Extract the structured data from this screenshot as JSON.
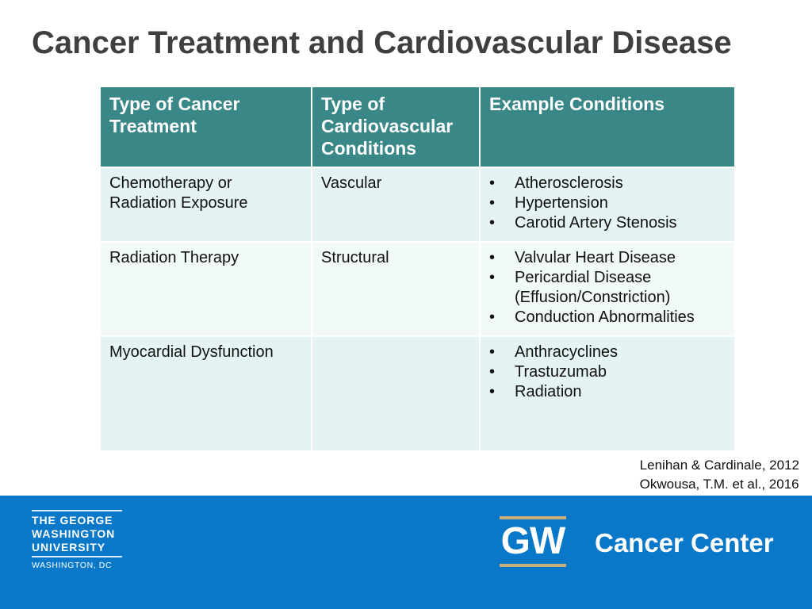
{
  "title": "Cancer Treatment and Cardiovascular Disease",
  "table": {
    "headers": [
      "Type of Cancer Treatment",
      "Type of Cardiovascular Conditions",
      "Example Conditions"
    ],
    "rows": [
      {
        "treatment": "Chemotherapy or Radiation Exposure",
        "condition_type": "Vascular",
        "examples": [
          "Atherosclerosis",
          "Hypertension",
          "Carotid Artery Stenosis"
        ]
      },
      {
        "treatment": "Radiation Therapy",
        "condition_type": "Structural",
        "examples": [
          "Valvular Heart Disease",
          "Pericardial Disease (Effusion/Constriction)",
          "Conduction Abnormalities"
        ]
      },
      {
        "treatment": "Myocardial Dysfunction",
        "condition_type": "",
        "examples": [
          "Anthracyclines",
          "Trastuzumab",
          "Radiation"
        ]
      }
    ]
  },
  "references": [
    "Lenihan & Cardinale, 2012",
    "Okwousa, T.M. et al., 2016"
  ],
  "footer": {
    "university_lines": [
      "THE GEORGE",
      "WASHINGTON",
      "UNIVERSITY"
    ],
    "university_city": "WASHINGTON, DC",
    "gw_mark": "GW",
    "center_name": "Cancer Center"
  },
  "colors": {
    "header_bg": "#3a8787",
    "row_bg": "#e6f3f3",
    "footer_bg": "#0a78c8",
    "gold_accent": "#c9b07a"
  }
}
